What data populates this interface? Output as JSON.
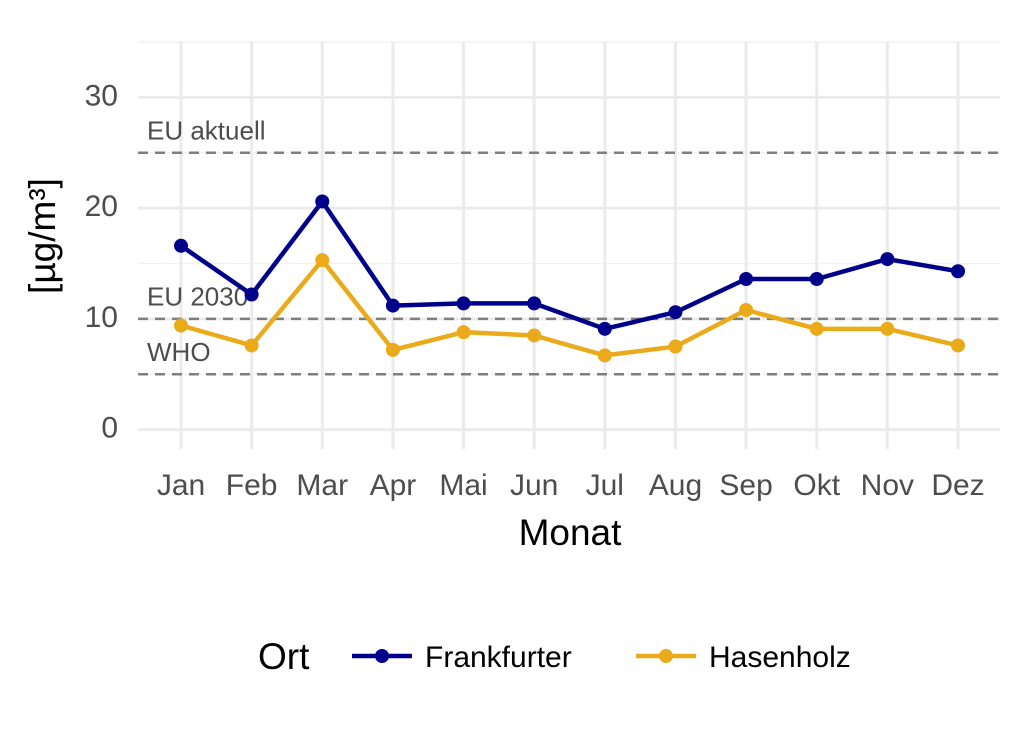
{
  "chart_data": {
    "type": "line",
    "x_label": "Monat",
    "y_label": "[µg/m³]",
    "categories": [
      "Jan",
      "Feb",
      "Mar",
      "Apr",
      "Mai",
      "Jun",
      "Jul",
      "Aug",
      "Sep",
      "Okt",
      "Nov",
      "Dez"
    ],
    "series": [
      {
        "name": "Frankfurter",
        "color": "#00008b",
        "values": [
          16.6,
          12.2,
          20.6,
          11.2,
          11.4,
          11.4,
          9.1,
          10.6,
          13.6,
          13.6,
          15.4,
          14.3
        ]
      },
      {
        "name": "Hasenholz",
        "color": "#eaaa1a",
        "values": [
          9.4,
          7.6,
          15.3,
          7.2,
          8.8,
          8.5,
          6.7,
          7.5,
          10.8,
          9.1,
          9.1,
          7.6
        ]
      }
    ],
    "ylim": [
      -1.75,
      35
    ],
    "yticks": [
      0,
      10,
      20,
      30
    ],
    "y_minor_grid": [
      5,
      15,
      25,
      35
    ],
    "grid": true,
    "reference_lines": [
      {
        "value": 25,
        "label": "EU aktuell"
      },
      {
        "value": 10,
        "label": "EU 2030"
      },
      {
        "value": 5,
        "label": "WHO"
      }
    ],
    "legend_title": "Ort",
    "legend_position": "bottom"
  }
}
